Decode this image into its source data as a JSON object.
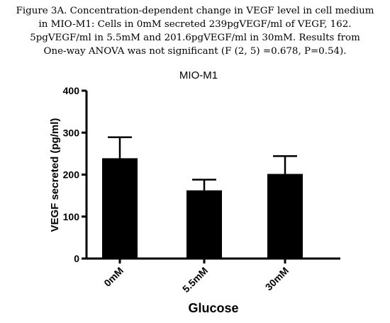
{
  "caption": {
    "lines": [
      "Figure 3A. Concentration-dependent change in VEGF level in cell medium",
      "in MIO-M1: Cells in 0mM secreted 239pgVEGF/ml of VEGF, 162.",
      "5pgVEGF/ml in 5.5mM and 201.6pgVEGF/ml in 30mM. Results from",
      "One-way ANOVA was not significant (F (2, 5) =0.678, P=0.54)."
    ]
  },
  "chart_data": {
    "type": "bar",
    "title": "MIO-M1",
    "xlabel": "Glucose",
    "ylabel": "VEGF secreted (pg/ml)",
    "categories": [
      "0mM",
      "5.5mM",
      "30mM"
    ],
    "values": [
      239,
      162.5,
      201.6
    ],
    "error_upper": [
      289,
      188,
      244
    ],
    "ylim": [
      0,
      400
    ],
    "yticks": [
      "0",
      "100",
      "200",
      "300",
      "400"
    ],
    "grid": false,
    "bar_color": "#000000"
  }
}
